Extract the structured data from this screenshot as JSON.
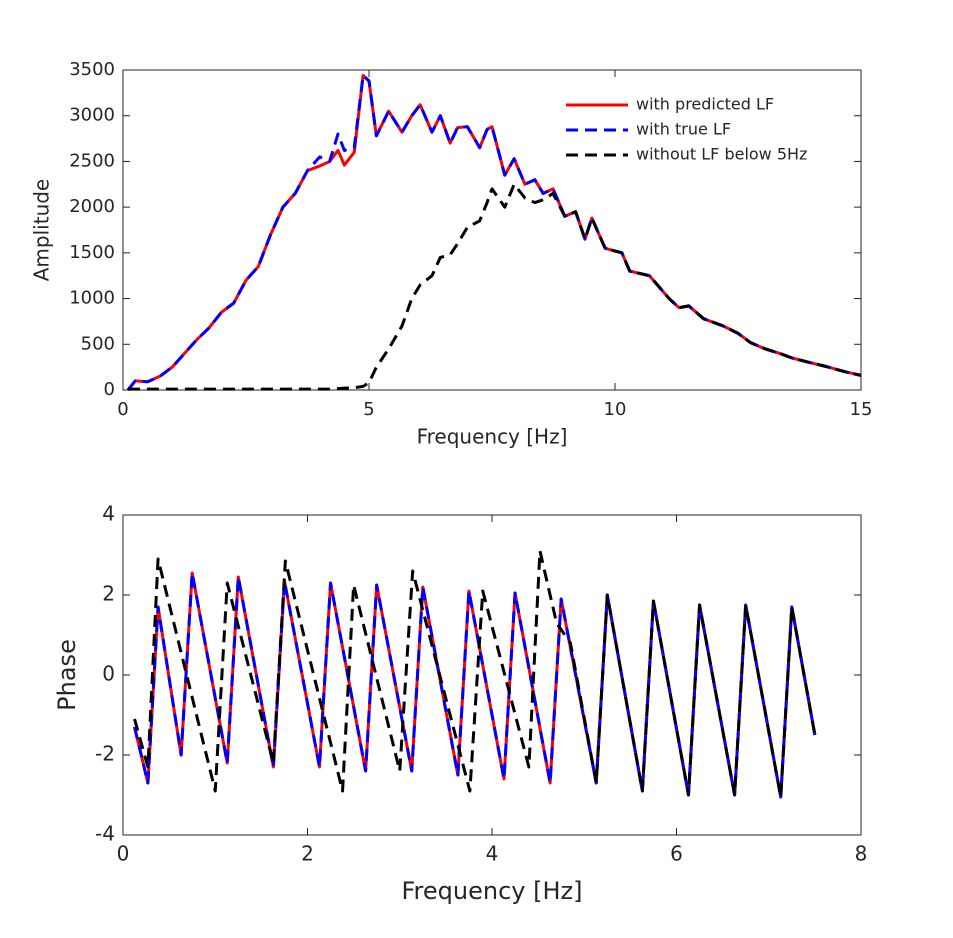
{
  "chart_data": [
    {
      "type": "line",
      "xlabel": "Frequency [Hz]",
      "ylabel": "Amplitude",
      "xlim": [
        0,
        15
      ],
      "xticks": [
        0,
        5,
        10,
        15
      ],
      "ylim": [
        0,
        3500
      ],
      "yticks": [
        0,
        500,
        1000,
        1500,
        2000,
        2500,
        3000,
        3500
      ],
      "legend": "northeast",
      "series": [
        {
          "name": "with predicted LF",
          "color": "#ff0000",
          "dash": false,
          "x": [
            0.1,
            0.25,
            0.5,
            0.75,
            1,
            1.25,
            1.5,
            1.75,
            2,
            2.25,
            2.5,
            2.75,
            3,
            3.25,
            3.5,
            3.75,
            4,
            4.2,
            4.37,
            4.5,
            4.7,
            4.88,
            5,
            5.15,
            5.4,
            5.67,
            5.87,
            6.04,
            6.28,
            6.45,
            6.65,
            6.8,
            7,
            7.25,
            7.4,
            7.5,
            7.76,
            7.95,
            8.17,
            8.37,
            8.54,
            8.74,
            8.98,
            9.2,
            9.39,
            9.53,
            9.8,
            10.14,
            10.3,
            10.7,
            11.1,
            11.3,
            11.5,
            11.8,
            12.2,
            12.5,
            12.75,
            13.05,
            13.35,
            13.6,
            13.96,
            14.27,
            14.67,
            15
          ],
          "values": [
            0,
            100,
            90,
            150,
            250,
            400,
            550,
            680,
            850,
            950,
            1200,
            1350,
            1700,
            2000,
            2150,
            2400,
            2450,
            2500,
            2620,
            2460,
            2600,
            3440,
            3380,
            2780,
            3050,
            2820,
            3000,
            3120,
            2820,
            3000,
            2700,
            2870,
            2880,
            2650,
            2850,
            2880,
            2350,
            2530,
            2250,
            2300,
            2150,
            2200,
            1900,
            1950,
            1650,
            1880,
            1550,
            1500,
            1300,
            1250,
            1000,
            900,
            920,
            780,
            700,
            620,
            520,
            450,
            400,
            350,
            300,
            260,
            200,
            160
          ]
        },
        {
          "name": "with true LF",
          "color": "#0000ff",
          "dash": true,
          "x": [
            0.1,
            0.25,
            0.5,
            0.75,
            1,
            1.25,
            1.5,
            1.75,
            2,
            2.25,
            2.5,
            2.75,
            3,
            3.25,
            3.5,
            3.75,
            4,
            4.2,
            4.37,
            4.5,
            4.7,
            4.88,
            5,
            5.15,
            5.4,
            5.67,
            5.87,
            6.04,
            6.28,
            6.45,
            6.65,
            6.8,
            7,
            7.25,
            7.4,
            7.5,
            7.76,
            7.95,
            8.17,
            8.37,
            8.54,
            8.74,
            8.98,
            9.2,
            9.39,
            9.53,
            9.8,
            10.14,
            10.3,
            10.7,
            11.1,
            11.3,
            11.5,
            11.8,
            12.2,
            12.5,
            12.75,
            13.05,
            13.35,
            13.6,
            13.96,
            14.27,
            14.67,
            15
          ],
          "values": [
            0,
            100,
            90,
            150,
            250,
            400,
            550,
            680,
            850,
            950,
            1200,
            1350,
            1700,
            2000,
            2150,
            2400,
            2550,
            2500,
            2800,
            2620,
            2650,
            3440,
            3380,
            2780,
            3050,
            2820,
            3000,
            3120,
            2820,
            3000,
            2700,
            2870,
            2880,
            2650,
            2850,
            2880,
            2350,
            2530,
            2250,
            2300,
            2150,
            2200,
            1900,
            1950,
            1650,
            1880,
            1550,
            1500,
            1300,
            1250,
            1000,
            900,
            920,
            780,
            700,
            620,
            520,
            450,
            400,
            350,
            300,
            260,
            200,
            160
          ]
        },
        {
          "name": "without LF below 5Hz",
          "color": "#000000",
          "dash": true,
          "x": [
            0.1,
            0.25,
            0.5,
            0.75,
            1,
            1.25,
            1.5,
            1.75,
            2,
            2.25,
            2.5,
            2.75,
            3,
            3.25,
            3.5,
            3.75,
            4,
            4.2,
            4.37,
            4.5,
            4.7,
            4.88,
            5,
            5.15,
            5.4,
            5.67,
            5.87,
            6.04,
            6.28,
            6.45,
            6.65,
            6.8,
            7,
            7.25,
            7.4,
            7.5,
            7.76,
            7.95,
            8.17,
            8.37,
            8.54,
            8.74,
            8.98,
            9.2,
            9.39,
            9.53,
            9.8,
            10.14,
            10.3,
            10.7,
            11.1,
            11.3,
            11.5,
            11.8,
            12.2,
            12.5,
            12.75,
            13.05,
            13.35,
            13.6,
            13.96,
            14.27,
            14.67,
            15
          ],
          "values": [
            10,
            10,
            10,
            10,
            10,
            10,
            10,
            10,
            10,
            10,
            10,
            10,
            10,
            10,
            10,
            10,
            10,
            10,
            15,
            20,
            25,
            40,
            80,
            250,
            450,
            700,
            1000,
            1150,
            1250,
            1450,
            1480,
            1600,
            1780,
            1850,
            2050,
            2200,
            2000,
            2250,
            2100,
            2050,
            2080,
            2150,
            1900,
            1950,
            1650,
            1880,
            1550,
            1500,
            1300,
            1250,
            1000,
            900,
            920,
            780,
            700,
            620,
            520,
            450,
            400,
            350,
            300,
            260,
            200,
            160
          ]
        }
      ]
    },
    {
      "type": "line",
      "xlabel": "Frequency [Hz]",
      "ylabel": "Phase",
      "xlim": [
        0,
        8
      ],
      "xticks": [
        0,
        2,
        4,
        6,
        8
      ],
      "ylim": [
        -4,
        4
      ],
      "yticks": [
        -4,
        -2,
        0,
        2,
        4
      ],
      "series": [
        {
          "name": "with predicted LF",
          "color": "#ff0000",
          "dash": false,
          "x": [
            0.125,
            0.27,
            0.38,
            0.63,
            0.75,
            1.13,
            1.25,
            1.63,
            1.75,
            2.13,
            2.25,
            2.63,
            2.75,
            3.13,
            3.25,
            3.63,
            3.75,
            4.13,
            4.25,
            4.63,
            4.75,
            5.13,
            5.25,
            5.63,
            5.75,
            6.13,
            6.25,
            6.63,
            6.75,
            7.13,
            7.25,
            7.5
          ],
          "values": [
            -1.3,
            -2.7,
            1.7,
            -2.0,
            2.55,
            -2.2,
            2.45,
            -2.3,
            2.35,
            -2.3,
            2.3,
            -2.4,
            2.25,
            -2.4,
            2.2,
            -2.5,
            2.1,
            -2.6,
            2.05,
            -2.7,
            1.9,
            -2.7,
            2.0,
            -2.9,
            1.85,
            -3.0,
            1.75,
            -3.0,
            1.75,
            -3.05,
            1.7,
            -1.5
          ]
        },
        {
          "name": "with true LF",
          "color": "#0000ff",
          "dash": true,
          "x": [
            0.125,
            0.27,
            0.38,
            0.63,
            0.75,
            1.13,
            1.25,
            1.63,
            1.75,
            2.13,
            2.25,
            2.63,
            2.75,
            3.13,
            3.25,
            3.63,
            3.75,
            4.13,
            4.25,
            4.63,
            4.75,
            5.13,
            5.25,
            5.63,
            5.75,
            6.13,
            6.25,
            6.63,
            6.75,
            7.13,
            7.25,
            7.5
          ],
          "values": [
            -1.3,
            -2.7,
            1.7,
            -2.0,
            2.55,
            -2.2,
            2.45,
            -2.3,
            2.35,
            -2.3,
            2.3,
            -2.4,
            2.25,
            -2.4,
            2.2,
            -2.5,
            2.1,
            -2.6,
            2.05,
            -2.7,
            1.9,
            -2.7,
            2.0,
            -2.9,
            1.85,
            -3.0,
            1.75,
            -3.0,
            1.75,
            -3.05,
            1.7,
            -1.5
          ]
        },
        {
          "name": "without LF below 5Hz",
          "color": "#000000",
          "dash": true,
          "x": [
            0.125,
            0.27,
            0.38,
            1.0,
            1.13,
            1.63,
            1.76,
            2.38,
            2.5,
            3.0,
            3.14,
            3.76,
            3.9,
            4.4,
            4.52,
            4.7,
            4.85,
            5.13,
            5.25,
            5.63,
            5.75,
            6.13,
            6.25,
            6.63,
            6.75,
            7.13,
            7.25,
            7.5
          ],
          "values": [
            -1.1,
            -2.3,
            2.9,
            -2.9,
            2.3,
            -2.2,
            2.85,
            -2.9,
            2.25,
            -2.4,
            2.6,
            -2.9,
            2.1,
            -2.3,
            3.1,
            1.3,
            0.8,
            -2.7,
            2.0,
            -2.9,
            1.85,
            -3.0,
            1.75,
            -3.0,
            1.75,
            -3.05,
            1.7,
            -1.5
          ]
        }
      ]
    }
  ]
}
